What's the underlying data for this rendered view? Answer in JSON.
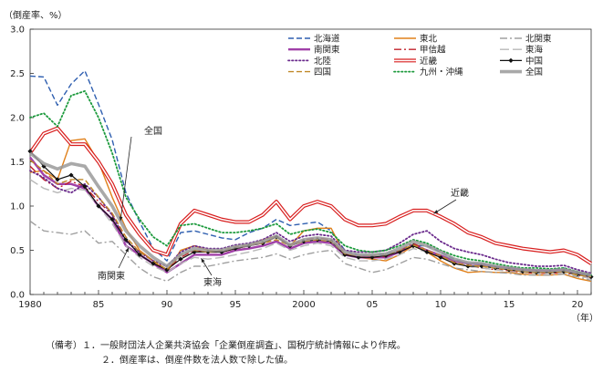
{
  "chart_data": {
    "type": "line",
    "ylabel": "（倒産率、%）",
    "xunit": "（年）",
    "ylim": [
      0,
      3.0
    ],
    "yticks": [
      "0.0",
      "0.5",
      "1.0",
      "1.5",
      "2.0",
      "2.5",
      "3.0"
    ],
    "xlim": [
      1980,
      2021
    ],
    "xticks": [
      {
        "year": 1980,
        "label": "1980"
      },
      {
        "year": 1985,
        "label": "85"
      },
      {
        "year": 1990,
        "label": "90"
      },
      {
        "year": 1995,
        "label": "95"
      },
      {
        "year": 2000,
        "label": "2000"
      },
      {
        "year": 2005,
        "label": "05"
      },
      {
        "year": 2010,
        "label": "10"
      },
      {
        "year": 2015,
        "label": "15"
      },
      {
        "year": 2020,
        "label": "20"
      }
    ],
    "x": [
      1980,
      1981,
      1982,
      1983,
      1984,
      1985,
      1986,
      1987,
      1988,
      1989,
      1990,
      1991,
      1992,
      1993,
      1994,
      1995,
      1996,
      1997,
      1998,
      1999,
      2000,
      2001,
      2002,
      2003,
      2004,
      2005,
      2006,
      2007,
      2008,
      2009,
      2010,
      2011,
      2012,
      2013,
      2014,
      2015,
      2016,
      2017,
      2018,
      2019,
      2020,
      2021
    ],
    "series": [
      {
        "name": "北海道",
        "color": "#2f5fb0",
        "style": "dashed",
        "values": [
          2.47,
          2.46,
          2.14,
          2.38,
          2.53,
          2.15,
          1.75,
          1.15,
          0.82,
          0.52,
          0.38,
          0.7,
          0.72,
          0.68,
          0.64,
          0.62,
          0.7,
          0.75,
          0.85,
          0.78,
          0.8,
          0.82,
          0.72,
          0.5,
          0.44,
          0.44,
          0.46,
          0.5,
          0.55,
          0.55,
          0.48,
          0.4,
          0.35,
          0.35,
          0.32,
          0.3,
          0.28,
          0.28,
          0.28,
          0.3,
          0.25,
          0.2
        ]
      },
      {
        "name": "東北",
        "color": "#e0801a",
        "style": "solid",
        "values": [
          1.38,
          1.4,
          1.3,
          1.74,
          1.76,
          1.5,
          1.1,
          0.75,
          0.5,
          0.38,
          0.25,
          0.5,
          0.55,
          0.5,
          0.48,
          0.52,
          0.55,
          0.62,
          0.66,
          0.55,
          0.72,
          0.75,
          0.75,
          0.45,
          0.42,
          0.4,
          0.38,
          0.45,
          0.55,
          0.48,
          0.38,
          0.3,
          0.25,
          0.26,
          0.25,
          0.25,
          0.23,
          0.22,
          0.22,
          0.23,
          0.18,
          0.15
        ]
      },
      {
        "name": "北関東",
        "color": "#a0a0a0",
        "style": "dashdot",
        "values": [
          0.83,
          0.72,
          0.7,
          0.68,
          0.72,
          0.58,
          0.6,
          0.45,
          0.3,
          0.2,
          0.15,
          0.25,
          0.32,
          0.32,
          0.35,
          0.38,
          0.4,
          0.42,
          0.46,
          0.4,
          0.45,
          0.48,
          0.5,
          0.35,
          0.3,
          0.25,
          0.28,
          0.35,
          0.42,
          0.4,
          0.35,
          0.3,
          0.28,
          0.26,
          0.25,
          0.24,
          0.22,
          0.22,
          0.22,
          0.23,
          0.2,
          0.16
        ]
      },
      {
        "name": "南関東",
        "color": "#a040a8",
        "style": "solid-thick",
        "values": [
          1.55,
          1.35,
          1.25,
          1.25,
          1.2,
          1.0,
          0.85,
          0.55,
          0.45,
          0.35,
          0.25,
          0.35,
          0.45,
          0.45,
          0.45,
          0.5,
          0.52,
          0.55,
          0.6,
          0.52,
          0.58,
          0.6,
          0.58,
          0.45,
          0.42,
          0.42,
          0.42,
          0.48,
          0.56,
          0.5,
          0.44,
          0.38,
          0.35,
          0.34,
          0.31,
          0.3,
          0.28,
          0.27,
          0.27,
          0.28,
          0.25,
          0.22
        ]
      },
      {
        "name": "甲信越",
        "color": "#c0202a",
        "style": "dashdot",
        "values": [
          1.45,
          1.3,
          1.2,
          1.28,
          1.22,
          1.05,
          0.9,
          0.62,
          0.48,
          0.38,
          0.28,
          0.42,
          0.5,
          0.48,
          0.48,
          0.52,
          0.55,
          0.58,
          0.65,
          0.56,
          0.62,
          0.64,
          0.62,
          0.46,
          0.42,
          0.42,
          0.43,
          0.5,
          0.58,
          0.5,
          0.42,
          0.36,
          0.32,
          0.3,
          0.28,
          0.27,
          0.25,
          0.24,
          0.24,
          0.25,
          0.22,
          0.18
        ]
      },
      {
        "name": "東海",
        "color": "#b8b8b8",
        "style": "longdash",
        "values": [
          1.3,
          1.2,
          1.15,
          1.2,
          1.18,
          1.0,
          0.8,
          0.55,
          0.42,
          0.32,
          0.25,
          0.35,
          0.42,
          0.4,
          0.42,
          0.45,
          0.48,
          0.52,
          0.58,
          0.5,
          0.55,
          0.58,
          0.55,
          0.42,
          0.38,
          0.38,
          0.4,
          0.45,
          0.52,
          0.48,
          0.42,
          0.36,
          0.32,
          0.3,
          0.28,
          0.26,
          0.25,
          0.24,
          0.24,
          0.25,
          0.21,
          0.18
        ]
      },
      {
        "name": "北陸",
        "color": "#6a2a8c",
        "style": "dotted",
        "values": [
          1.4,
          1.32,
          1.2,
          1.15,
          1.25,
          1.1,
          0.9,
          0.6,
          0.48,
          0.38,
          0.32,
          0.48,
          0.55,
          0.52,
          0.52,
          0.56,
          0.58,
          0.62,
          0.7,
          0.6,
          0.66,
          0.68,
          0.66,
          0.5,
          0.48,
          0.48,
          0.5,
          0.58,
          0.68,
          0.72,
          0.6,
          0.52,
          0.48,
          0.45,
          0.4,
          0.36,
          0.34,
          0.32,
          0.32,
          0.33,
          0.28,
          0.24
        ]
      },
      {
        "name": "近畿",
        "color": "#d81e1e",
        "style": "double",
        "values": [
          1.6,
          1.82,
          1.88,
          1.7,
          1.7,
          1.5,
          1.25,
          0.9,
          0.68,
          0.5,
          0.45,
          0.8,
          0.95,
          0.9,
          0.85,
          0.82,
          0.82,
          0.9,
          1.05,
          0.85,
          1.0,
          1.05,
          1.0,
          0.85,
          0.78,
          0.78,
          0.8,
          0.88,
          0.95,
          0.95,
          0.88,
          0.8,
          0.7,
          0.65,
          0.58,
          0.55,
          0.52,
          0.5,
          0.48,
          0.5,
          0.45,
          0.35
        ]
      },
      {
        "name": "中国",
        "color": "#111111",
        "style": "marker",
        "values": [
          1.62,
          1.45,
          1.3,
          1.35,
          1.22,
          1.0,
          0.85,
          0.62,
          0.45,
          0.35,
          0.28,
          0.4,
          0.48,
          0.48,
          0.48,
          0.52,
          0.55,
          0.58,
          0.65,
          0.55,
          0.6,
          0.62,
          0.6,
          0.45,
          0.42,
          0.42,
          0.44,
          0.48,
          0.55,
          0.48,
          0.42,
          0.35,
          0.32,
          0.32,
          0.3,
          0.28,
          0.26,
          0.25,
          0.25,
          0.26,
          0.23,
          0.2
        ]
      },
      {
        "name": "四国",
        "color": "#c08828",
        "style": "dashed",
        "values": [
          1.52,
          1.4,
          1.25,
          1.3,
          1.3,
          1.1,
          0.92,
          0.65,
          0.48,
          0.38,
          0.28,
          0.45,
          0.5,
          0.48,
          0.5,
          0.54,
          0.56,
          0.58,
          0.62,
          0.55,
          0.6,
          0.62,
          0.6,
          0.46,
          0.44,
          0.44,
          0.45,
          0.5,
          0.56,
          0.5,
          0.44,
          0.36,
          0.33,
          0.32,
          0.3,
          0.28,
          0.26,
          0.25,
          0.25,
          0.26,
          0.22,
          0.2
        ]
      },
      {
        "name": "九州・沖縄",
        "color": "#1c9a3c",
        "style": "dotted",
        "values": [
          2.0,
          2.05,
          1.9,
          2.25,
          2.3,
          2.0,
          1.6,
          1.1,
          0.85,
          0.65,
          0.55,
          0.78,
          0.8,
          0.75,
          0.7,
          0.7,
          0.72,
          0.75,
          0.8,
          0.68,
          0.72,
          0.74,
          0.7,
          0.55,
          0.5,
          0.48,
          0.5,
          0.55,
          0.62,
          0.58,
          0.5,
          0.44,
          0.4,
          0.38,
          0.35,
          0.32,
          0.3,
          0.3,
          0.29,
          0.3,
          0.26,
          0.22
        ]
      },
      {
        "name": "全国",
        "color": "#9a9a9a",
        "style": "thick",
        "values": [
          1.6,
          1.48,
          1.42,
          1.48,
          1.45,
          1.22,
          1.0,
          0.72,
          0.55,
          0.42,
          0.32,
          0.45,
          0.52,
          0.5,
          0.5,
          0.54,
          0.56,
          0.6,
          0.66,
          0.56,
          0.62,
          0.64,
          0.62,
          0.48,
          0.45,
          0.45,
          0.46,
          0.52,
          0.6,
          0.55,
          0.48,
          0.4,
          0.36,
          0.35,
          0.32,
          0.3,
          0.28,
          0.27,
          0.27,
          0.28,
          0.25,
          0.22
        ]
      }
    ],
    "annotations": [
      {
        "label": "全国",
        "series": "全国",
        "year": 1986.6
      },
      {
        "label": "南関東",
        "series": "南関東",
        "year": 1987.2
      },
      {
        "label": "東海",
        "series": "東海",
        "year": 1992.5
      },
      {
        "label": "近畿",
        "series": "近畿",
        "year": 2009.5
      }
    ],
    "legend_position": "top-right"
  },
  "notes": {
    "line1": "（備考）１．一般財団法人企業共済協会「企業倒産調査」、国税庁統計情報により作成。",
    "line2": "２．倒産率は、倒産件数を法人数で除した値。"
  }
}
